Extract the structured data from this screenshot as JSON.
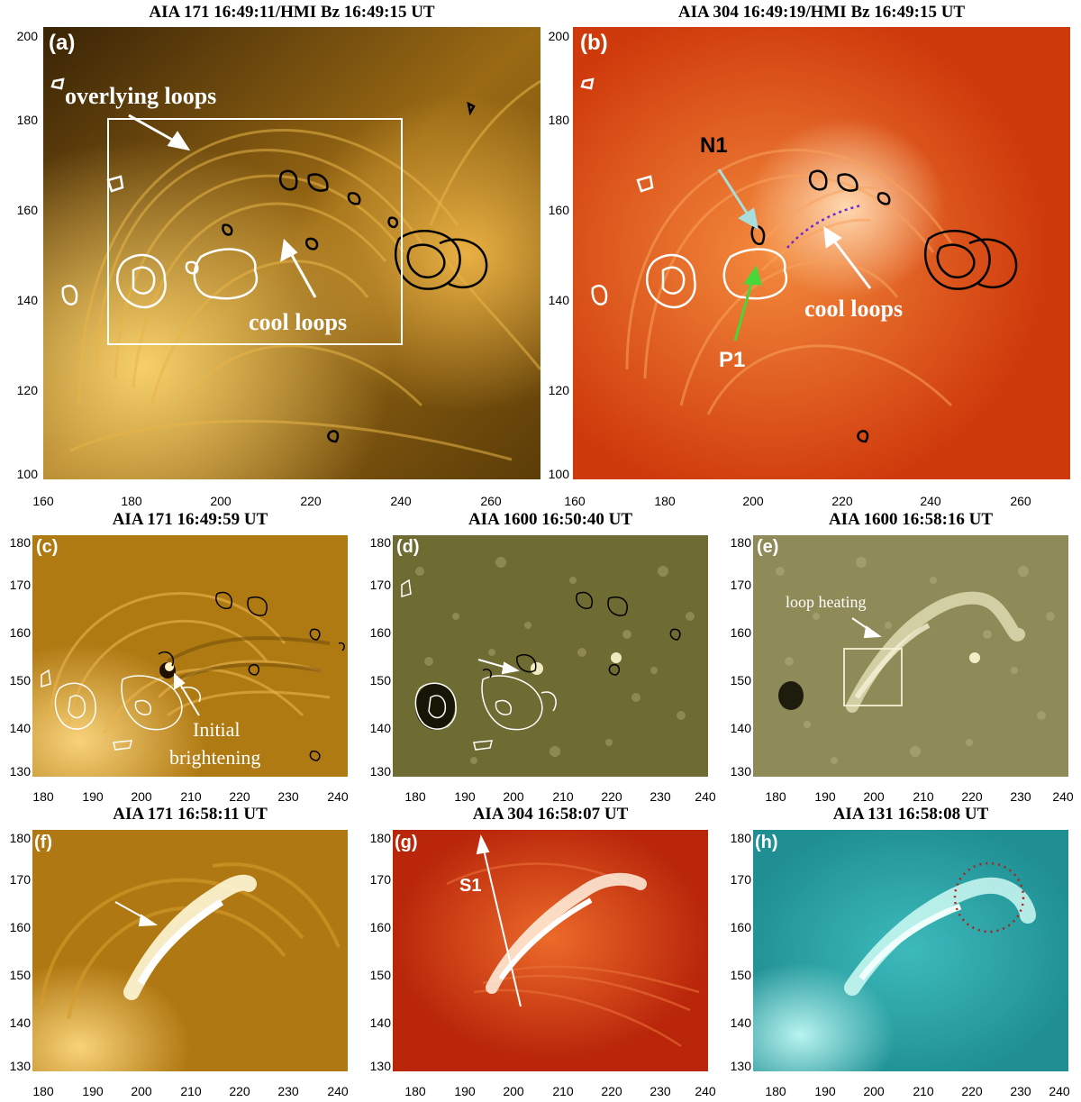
{
  "panels": {
    "a": {
      "title": "AIA 171 16:49:11/HMI Bz 16:49:15 UT",
      "label": "(a)",
      "yticks": [
        "200",
        "180",
        "160",
        "140",
        "120",
        "100"
      ],
      "xticks": [
        "160",
        "180",
        "200",
        "220",
        "240",
        "260"
      ],
      "annotations": {
        "overlying": "overlying loops",
        "cool": "cool loops"
      }
    },
    "b": {
      "title": "AIA 304 16:49:19/HMI Bz 16:49:15 UT",
      "label": "(b)",
      "yticks": [
        "200",
        "180",
        "160",
        "140",
        "120",
        "100"
      ],
      "xticks": [
        "160",
        "180",
        "200",
        "220",
        "240",
        "260"
      ],
      "annotations": {
        "n1": "N1",
        "p1": "P1",
        "cool": "cool loops"
      }
    },
    "c": {
      "title": "AIA 171 16:49:59 UT",
      "label": "(c)",
      "yticks": [
        "180",
        "170",
        "160",
        "150",
        "140",
        "130"
      ],
      "xticks": [
        "180",
        "190",
        "200",
        "210",
        "220",
        "230",
        "240"
      ],
      "annotations": {
        "initial_line1": "Initial",
        "initial_line2": "brightening"
      }
    },
    "d": {
      "title": "AIA 1600 16:50:40 UT",
      "label": "(d)",
      "yticks": [
        "180",
        "170",
        "160",
        "150",
        "140",
        "130"
      ],
      "xticks": [
        "180",
        "190",
        "200",
        "210",
        "220",
        "230",
        "240"
      ]
    },
    "e": {
      "title": "AIA 1600 16:58:16 UT",
      "label": "(e)",
      "yticks": [
        "180",
        "170",
        "160",
        "150",
        "140",
        "130"
      ],
      "xticks": [
        "180",
        "190",
        "200",
        "210",
        "220",
        "230",
        "240"
      ],
      "annotations": {
        "heating": "loop heating"
      }
    },
    "f": {
      "title": "AIA 171 16:58:11 UT",
      "label": "(f)",
      "yticks": [
        "180",
        "170",
        "160",
        "150",
        "140",
        "130"
      ],
      "xticks": [
        "180",
        "190",
        "200",
        "210",
        "220",
        "230",
        "240"
      ]
    },
    "g": {
      "title": "AIA 304 16:58:07 UT",
      "label": "(g)",
      "yticks": [
        "180",
        "170",
        "160",
        "150",
        "140",
        "130"
      ],
      "xticks": [
        "180",
        "190",
        "200",
        "210",
        "220",
        "230",
        "240"
      ],
      "annotations": {
        "s1": "S1"
      }
    },
    "h": {
      "title": "AIA 131 16:58:08 UT",
      "label": "(h)",
      "yticks": [
        "180",
        "170",
        "160",
        "150",
        "140",
        "130"
      ],
      "xticks": [
        "180",
        "190",
        "200",
        "210",
        "220",
        "230",
        "240"
      ]
    }
  },
  "colors": {
    "aia171": "#c98a12",
    "aia304": "#d8440f",
    "aia1600": "#7d7a3a",
    "aia131": "#2ea6a8",
    "positive_contour": "#ffffff",
    "negative_contour": "#000000",
    "n1_arrow": "#a8dede",
    "p1_arrow": "#49d63a",
    "dotted_loop": "#6a2bd6",
    "dotted_circle": "#b0201a"
  }
}
